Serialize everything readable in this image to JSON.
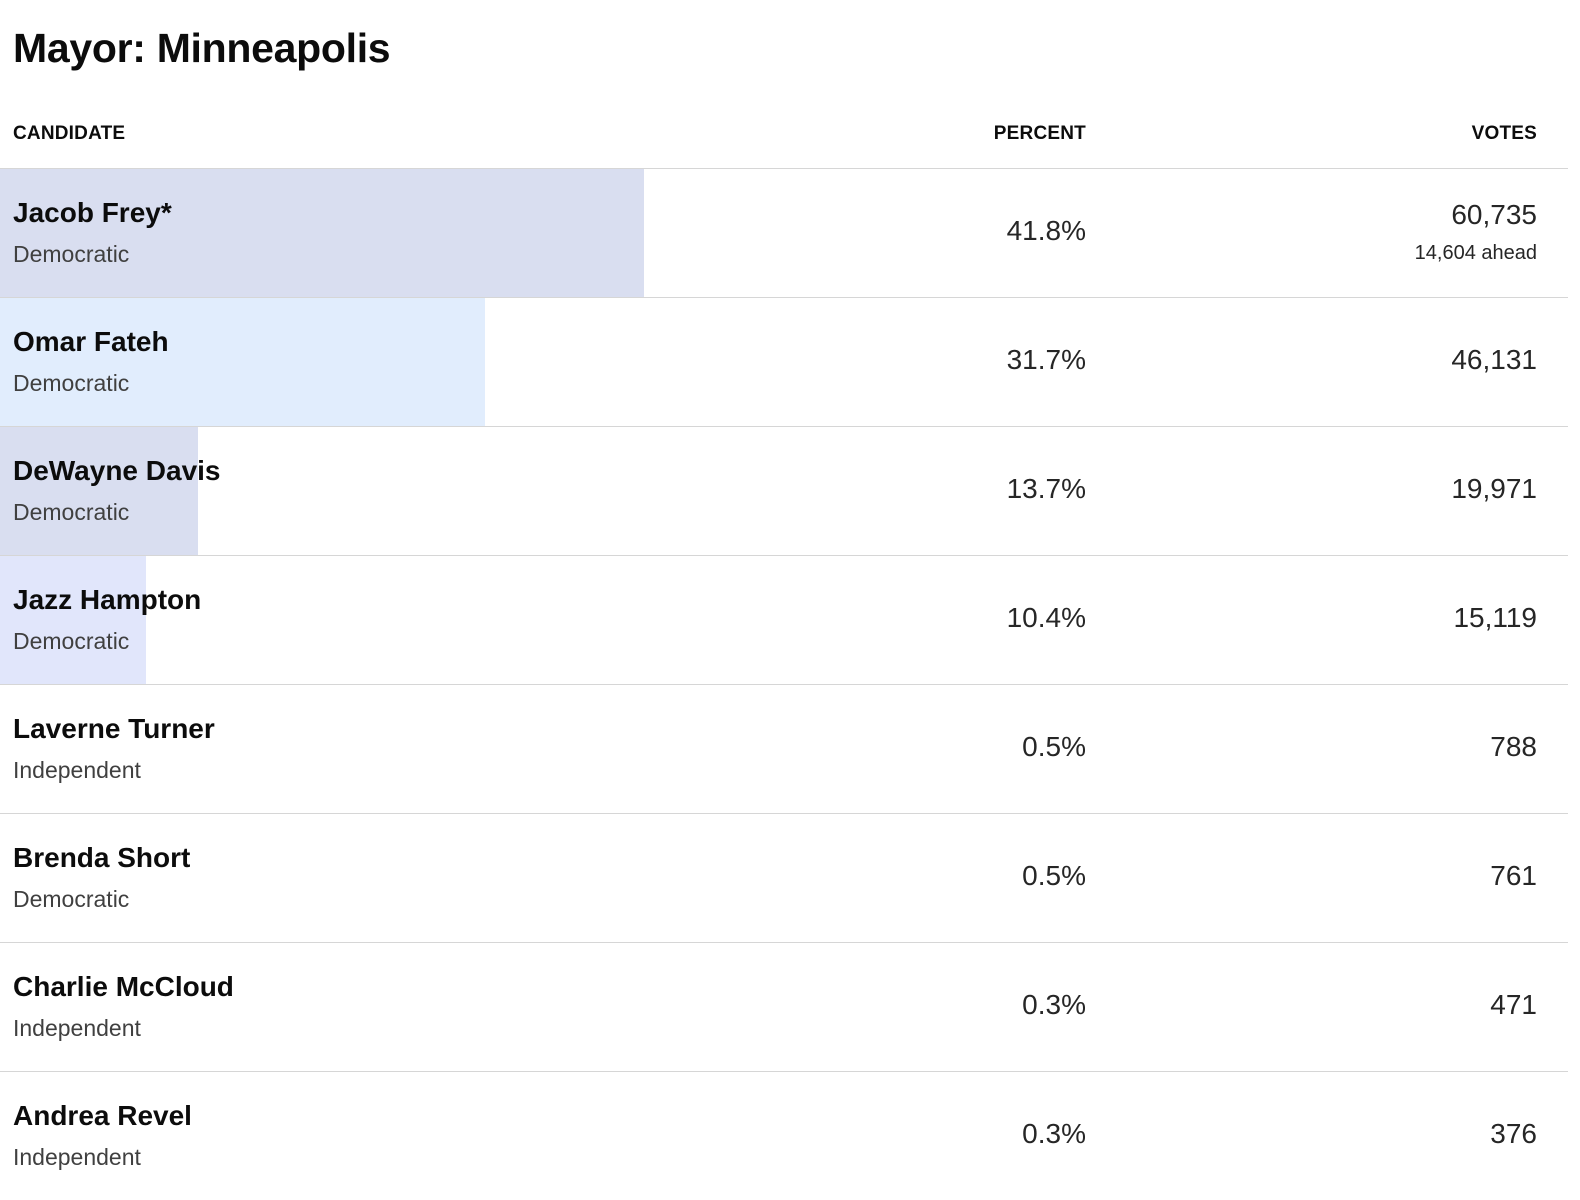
{
  "title": "Mayor: Minneapolis",
  "headers": {
    "candidate": "CANDIDATE",
    "percent": "PERCENT",
    "votes": "VOTES"
  },
  "candidates": [
    {
      "name": "Jacob Frey*",
      "party": "Democratic",
      "percent": "41.8%",
      "votes": "60,735",
      "ahead": "14,604 ahead",
      "bar_fraction": 0.411,
      "bar_color": "#d9def0"
    },
    {
      "name": "Omar Fateh",
      "party": "Democratic",
      "percent": "31.7%",
      "votes": "46,131",
      "ahead": "",
      "bar_fraction": 0.309,
      "bar_color": "#e1edfd"
    },
    {
      "name": "DeWayne Davis",
      "party": "Democratic",
      "percent": "13.7%",
      "votes": "19,971",
      "ahead": "",
      "bar_fraction": 0.126,
      "bar_color": "#d9def0"
    },
    {
      "name": "Jazz Hampton",
      "party": "Democratic",
      "percent": "10.4%",
      "votes": "15,119",
      "ahead": "",
      "bar_fraction": 0.093,
      "bar_color": "#e1e6fb"
    },
    {
      "name": "Laverne Turner",
      "party": "Independent",
      "percent": "0.5%",
      "votes": "788",
      "ahead": "",
      "bar_fraction": 0,
      "bar_color": "#ffffff"
    },
    {
      "name": "Brenda Short",
      "party": "Democratic",
      "percent": "0.5%",
      "votes": "761",
      "ahead": "",
      "bar_fraction": 0,
      "bar_color": "#ffffff"
    },
    {
      "name": "Charlie McCloud",
      "party": "Independent",
      "percent": "0.3%",
      "votes": "471",
      "ahead": "",
      "bar_fraction": 0,
      "bar_color": "#ffffff"
    },
    {
      "name": "Andrea Revel",
      "party": "Independent",
      "percent": "0.3%",
      "votes": "376",
      "ahead": "",
      "bar_fraction": 0,
      "bar_color": "#ffffff"
    }
  ]
}
